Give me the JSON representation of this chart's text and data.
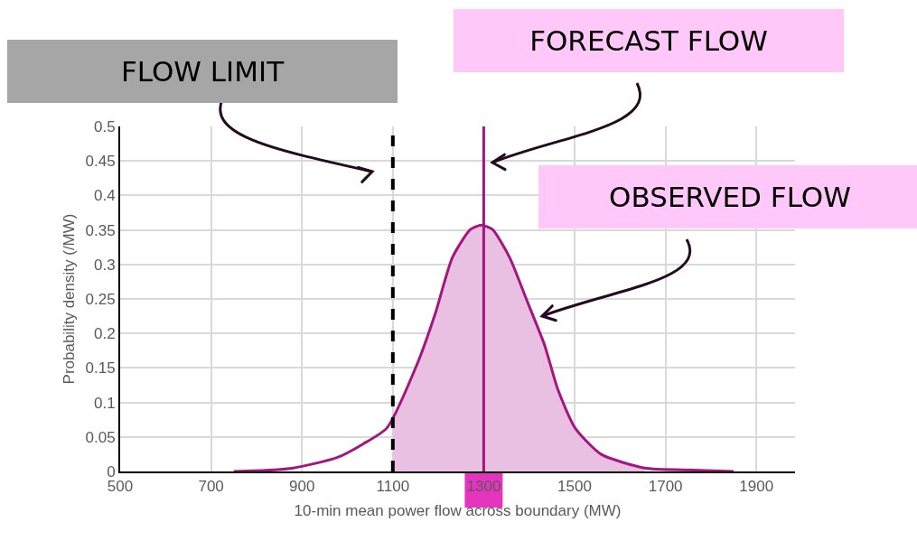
{
  "chart_data": {
    "type": "line",
    "xlabel": "10-min mean power flow across boundary (MW)",
    "ylabel": "Probability density (/MW)",
    "x": [
      750,
      830,
      881,
      977,
      1035,
      1087,
      1155,
      1193,
      1231,
      1271,
      1295,
      1319,
      1357,
      1396,
      1434,
      1463,
      1501,
      1558,
      1654,
      1760,
      1850
    ],
    "series": [
      {
        "color": "#a3167f",
        "values": [
          0,
          0.002,
          0.005,
          0.02,
          0.04,
          0.063,
          0.158,
          0.228,
          0.31,
          0.351,
          0.357,
          0.351,
          0.31,
          0.246,
          0.183,
          0.119,
          0.063,
          0.025,
          0.005,
          0.002,
          0
        ],
        "line_style": "solid"
      },
      {
        "type": "area",
        "color": "#e9c0e1",
        "x": [
          1100,
          1155,
          1193,
          1231,
          1271,
          1295,
          1319,
          1357,
          1396,
          1434,
          1463,
          1501,
          1558,
          1654
        ],
        "values": [
          0.075,
          0.158,
          0.228,
          0.31,
          0.351,
          0.357,
          0.351,
          0.31,
          0.246,
          0.183,
          0.119,
          0.063,
          0.025,
          0.005
        ]
      }
    ],
    "ref_lines": [
      {
        "axis": "x",
        "value": 1100,
        "color": "#000000",
        "line_style": "dashed"
      },
      {
        "axis": "x",
        "value": 1300,
        "color": "#a3167f",
        "line_style": "solid"
      }
    ],
    "annotations": [
      "FLOW LIMIT",
      "FORECAST FLOW",
      "OBSERVED FLOW"
    ],
    "xlim": [
      500,
      1985
    ],
    "xticks": [
      500,
      700,
      900,
      1100,
      1300,
      1500,
      1700,
      1900
    ],
    "ylim": [
      0,
      0.5
    ],
    "yticks": [
      0,
      0.05,
      0.1,
      0.15,
      0.2,
      0.25,
      0.3,
      0.35,
      0.4,
      0.45,
      0.5
    ],
    "grid": true,
    "legend": false,
    "marker": "none"
  }
}
